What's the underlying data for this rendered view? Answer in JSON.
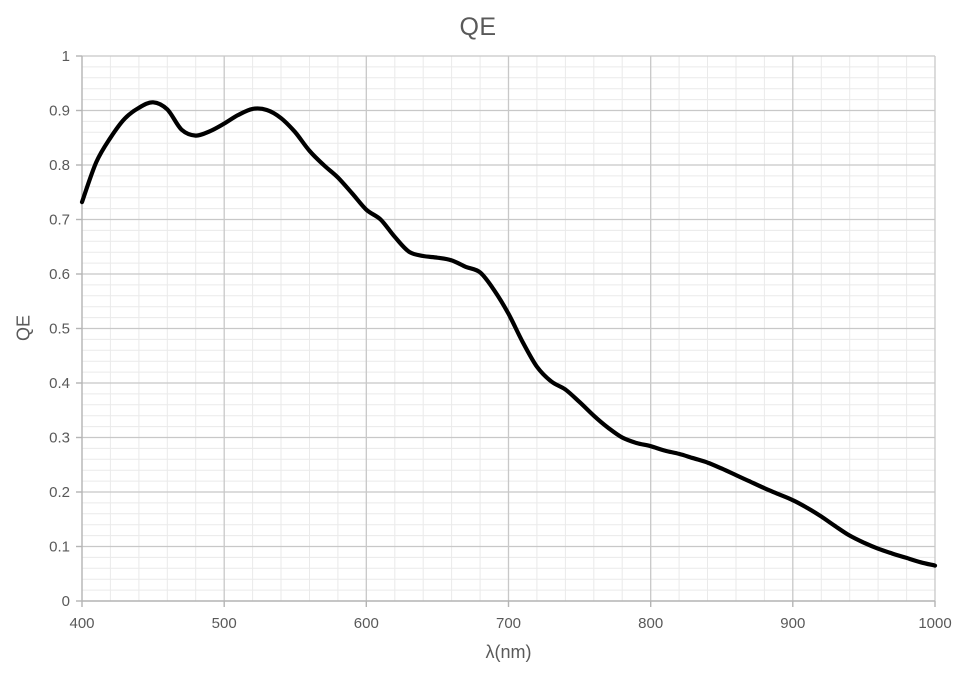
{
  "colors": {
    "line": "#000000",
    "major_grid": "#c8c8c8",
    "minor_grid": "#eaeaea",
    "axis": "#b4b4b4",
    "tick": "#b4b4b4",
    "text": "#595959",
    "background": "#ffffff"
  },
  "chart_data": {
    "type": "line",
    "title": "QE",
    "xlabel": "λ(nm)",
    "ylabel": "QE",
    "xlim": [
      400,
      1000
    ],
    "ylim": [
      0,
      1
    ],
    "x_major_step": 100,
    "x_minor_step": 20,
    "y_major_step": 0.1,
    "y_minor_step": 0.02,
    "x_tick_labels": [
      "400",
      "500",
      "600",
      "700",
      "800",
      "900",
      "1000"
    ],
    "y_tick_labels": [
      "0",
      "0.1",
      "0.2",
      "0.3",
      "0.4",
      "0.5",
      "0.6",
      "0.7",
      "0.8",
      "0.9",
      "1"
    ],
    "grid": {
      "major": true,
      "minor": true
    },
    "legend_position": "none",
    "series": [
      {
        "name": "QE",
        "smooth": true,
        "line_width": 4.2,
        "x": [
          400,
          410,
          420,
          430,
          440,
          450,
          460,
          470,
          480,
          490,
          500,
          510,
          520,
          530,
          540,
          550,
          560,
          570,
          580,
          590,
          600,
          610,
          620,
          630,
          640,
          650,
          660,
          670,
          680,
          690,
          700,
          710,
          720,
          730,
          740,
          750,
          760,
          770,
          780,
          790,
          800,
          810,
          820,
          830,
          840,
          850,
          860,
          870,
          880,
          890,
          900,
          910,
          920,
          930,
          940,
          950,
          960,
          970,
          980,
          990,
          1000
        ],
        "y": [
          0.732,
          0.805,
          0.85,
          0.885,
          0.905,
          0.915,
          0.902,
          0.865,
          0.854,
          0.862,
          0.876,
          0.892,
          0.903,
          0.901,
          0.886,
          0.86,
          0.826,
          0.8,
          0.777,
          0.748,
          0.718,
          0.7,
          0.668,
          0.641,
          0.633,
          0.63,
          0.625,
          0.613,
          0.603,
          0.57,
          0.527,
          0.475,
          0.43,
          0.403,
          0.388,
          0.365,
          0.34,
          0.318,
          0.3,
          0.29,
          0.284,
          0.276,
          0.27,
          0.262,
          0.254,
          0.243,
          0.231,
          0.219,
          0.207,
          0.196,
          0.185,
          0.171,
          0.155,
          0.137,
          0.12,
          0.107,
          0.096,
          0.087,
          0.079,
          0.071,
          0.065
        ]
      }
    ]
  }
}
